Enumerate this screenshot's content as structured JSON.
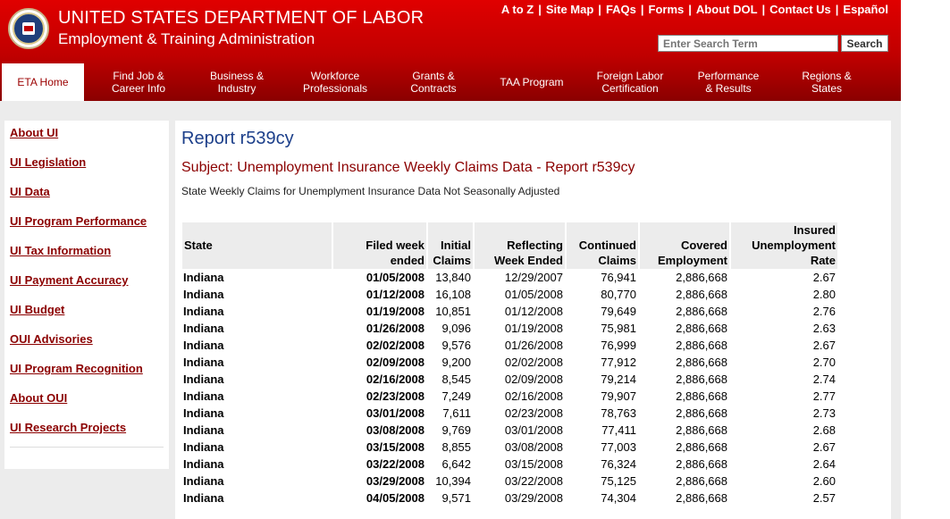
{
  "header": {
    "agency_title": "UNITED STATES DEPARTMENT OF LABOR",
    "agency_subtitle": "Employment & Training Administration",
    "utility_links": [
      "A to Z",
      "Site Map",
      "FAQs",
      "Forms",
      "About DOL",
      "Contact Us",
      "Español"
    ],
    "search": {
      "placeholder": "Enter Search Term",
      "button_label": "Search"
    },
    "logo_icon": "dol-seal-icon"
  },
  "nav": {
    "tabs": [
      {
        "label": "ETA Home",
        "active": true
      },
      {
        "label": "Find Job &\nCareer Info"
      },
      {
        "label": "Business &\nIndustry"
      },
      {
        "label": "Workforce\nProfessionals"
      },
      {
        "label": "Grants &\nContracts"
      },
      {
        "label": "TAA Program"
      },
      {
        "label": "Foreign Labor\nCertification"
      },
      {
        "label": "Performance\n& Results"
      },
      {
        "label": "Regions &\nStates"
      }
    ]
  },
  "sidebar": {
    "items": [
      "About UI",
      "UI Legislation",
      "UI Data",
      "UI Program Performance",
      "UI Tax Information",
      "UI Payment Accuracy",
      "UI Budget",
      "OUI Advisories",
      "UI Program Recognition",
      "About OUI",
      "UI Research Projects"
    ]
  },
  "main": {
    "title": "Report r539cy",
    "subject": "Subject: Unemployment Insurance Weekly Claims Data - Report r539cy",
    "description": "State Weekly Claims for Unemplyment Insurance Data Not Seasonally Adjusted",
    "table": {
      "headers": [
        "State",
        "Filed week\nended",
        "Initial\nClaims",
        "Reflecting\nWeek Ended",
        "Continued\nClaims",
        "Covered\nEmployment",
        "Insured\nUnemployment\nRate"
      ],
      "rows": [
        [
          "Indiana",
          "01/05/2008",
          "13,840",
          "12/29/2007",
          "76,941",
          "2,886,668",
          "2.67"
        ],
        [
          "Indiana",
          "01/12/2008",
          "16,108",
          "01/05/2008",
          "80,770",
          "2,886,668",
          "2.80"
        ],
        [
          "Indiana",
          "01/19/2008",
          "10,851",
          "01/12/2008",
          "79,649",
          "2,886,668",
          "2.76"
        ],
        [
          "Indiana",
          "01/26/2008",
          "9,096",
          "01/19/2008",
          "75,981",
          "2,886,668",
          "2.63"
        ],
        [
          "Indiana",
          "02/02/2008",
          "9,576",
          "01/26/2008",
          "76,999",
          "2,886,668",
          "2.67"
        ],
        [
          "Indiana",
          "02/09/2008",
          "9,200",
          "02/02/2008",
          "77,912",
          "2,886,668",
          "2.70"
        ],
        [
          "Indiana",
          "02/16/2008",
          "8,545",
          "02/09/2008",
          "79,214",
          "2,886,668",
          "2.74"
        ],
        [
          "Indiana",
          "02/23/2008",
          "7,249",
          "02/16/2008",
          "79,907",
          "2,886,668",
          "2.77"
        ],
        [
          "Indiana",
          "03/01/2008",
          "7,611",
          "02/23/2008",
          "78,763",
          "2,886,668",
          "2.73"
        ],
        [
          "Indiana",
          "03/08/2008",
          "9,769",
          "03/01/2008",
          "77,411",
          "2,886,668",
          "2.68"
        ],
        [
          "Indiana",
          "03/15/2008",
          "8,855",
          "03/08/2008",
          "77,003",
          "2,886,668",
          "2.67"
        ],
        [
          "Indiana",
          "03/22/2008",
          "6,642",
          "03/15/2008",
          "76,324",
          "2,886,668",
          "2.64"
        ],
        [
          "Indiana",
          "03/29/2008",
          "10,394",
          "03/22/2008",
          "75,125",
          "2,886,668",
          "2.60"
        ],
        [
          "Indiana",
          "04/05/2008",
          "9,571",
          "03/29/2008",
          "74,304",
          "2,886,668",
          "2.57"
        ]
      ]
    }
  }
}
